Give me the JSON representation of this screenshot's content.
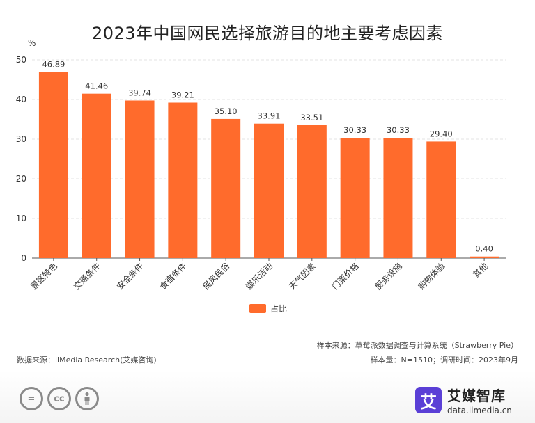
{
  "chart_data": {
    "type": "bar",
    "title": "2023年中国网民选择旅游目的地主要考虑因素",
    "ylabel": "%",
    "xlabel": "",
    "ylim": [
      0,
      50
    ],
    "yticks": [
      0,
      10,
      20,
      30,
      40,
      50
    ],
    "categories": [
      "景区特色",
      "交通条件",
      "安全条件",
      "食宿条件",
      "民风民俗",
      "娱乐活动",
      "天气因素",
      "门票价格",
      "服务设施",
      "购物体验",
      "其他"
    ],
    "series": [
      {
        "name": "占比",
        "color": "#ff6b2c",
        "values": [
          46.89,
          41.46,
          39.74,
          39.21,
          35.1,
          33.91,
          33.51,
          30.33,
          30.33,
          29.4,
          0.4
        ],
        "labels": [
          "46.89",
          "41.46",
          "39.74",
          "39.21",
          "35.10",
          "33.91",
          "33.51",
          "30.33",
          "30.33",
          "29.40",
          "0.40"
        ]
      }
    ],
    "grid": true,
    "legend": "bottom-center"
  },
  "notes": {
    "data_source": "数据来源：iiMedia Research(艾媒咨询)",
    "sample_source": "样本来源：草莓派数据调查与计算系统（Strawberry Pie）",
    "sample_size": "样本量：N=1510；调研时间：2023年9月"
  },
  "brand": {
    "name": "艾媒智库",
    "url": "data.iimedia.cn",
    "mark": "艾",
    "color": "#5a3fd6"
  },
  "license_icons": [
    "equals-icon",
    "cc-icon",
    "person-icon"
  ],
  "license_icon_texts": [
    "=",
    "cc",
    ""
  ]
}
